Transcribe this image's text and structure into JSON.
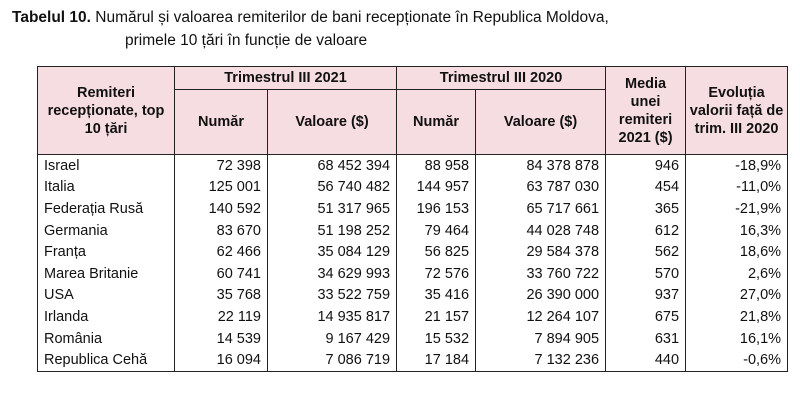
{
  "caption": {
    "label": "Tabelul 10.",
    "line1": " Numărul și valoarea remiterilor de bani recepționate în Republica Moldova,",
    "line2": "primele 10 țări în funcție de valoare"
  },
  "table": {
    "headers": {
      "rowhead": "Remiteri recepționate, top 10 țări",
      "q3_2021": "Trimestrul III 2021",
      "q3_2020": "Trimestrul III 2020",
      "numar": "Număr",
      "valoare": "Valoare ($)",
      "media": "Media unei remiteri 2021 ($)",
      "evolutia": "Evoluția valorii față de trim. III 2020"
    },
    "rows": [
      {
        "country": "Israel",
        "n2021": "72 398",
        "v2021": "68 452 394",
        "n2020": "88 958",
        "v2020": "84 378 878",
        "media": "946",
        "evol": "-18,9%"
      },
      {
        "country": "Italia",
        "n2021": "125 001",
        "v2021": "56 740 482",
        "n2020": "144 957",
        "v2020": "63 787 030",
        "media": "454",
        "evol": "-11,0%"
      },
      {
        "country": "Federația Rusă",
        "n2021": "140 592",
        "v2021": "51 317 965",
        "n2020": "196 153",
        "v2020": "65 717 661",
        "media": "365",
        "evol": "-21,9%"
      },
      {
        "country": "Germania",
        "n2021": "83 670",
        "v2021": "51 198 252",
        "n2020": "79 464",
        "v2020": "44 028 748",
        "media": "612",
        "evol": "16,3%"
      },
      {
        "country": "Franța",
        "n2021": "62 466",
        "v2021": "35 084 129",
        "n2020": "56 825",
        "v2020": "29 584 378",
        "media": "562",
        "evol": "18,6%"
      },
      {
        "country": "Marea Britanie",
        "n2021": "60 741",
        "v2021": "34 629 993",
        "n2020": "72 576",
        "v2020": "33 760 722",
        "media": "570",
        "evol": "2,6%"
      },
      {
        "country": "USA",
        "n2021": "35 768",
        "v2021": "33 522 759",
        "n2020": "35 416",
        "v2020": "26 390 000",
        "media": "937",
        "evol": "27,0%"
      },
      {
        "country": "Irlanda",
        "n2021": "22 119",
        "v2021": "14 935 817",
        "n2020": "21 157",
        "v2020": "12 264 107",
        "media": "675",
        "evol": "21,8%"
      },
      {
        "country": "România",
        "n2021": "14 539",
        "v2021": "9 167 429",
        "n2020": "15 532",
        "v2020": "7 894 905",
        "media": "631",
        "evol": "16,1%"
      },
      {
        "country": "Republica Cehă",
        "n2021": "16 094",
        "v2021": "7 086 719",
        "n2020": "17 184",
        "v2020": "7 132 236",
        "media": "440",
        "evol": "-0,6%"
      }
    ]
  }
}
